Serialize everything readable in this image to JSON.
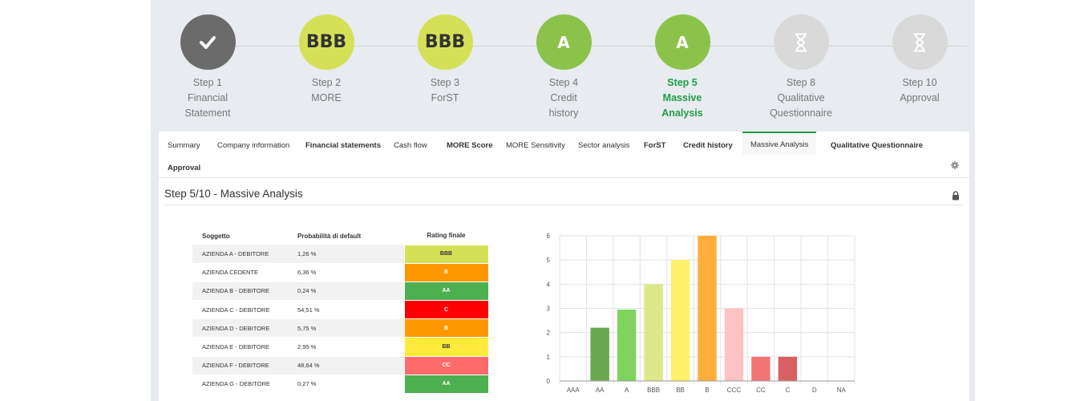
{
  "steps": [
    {
      "title": "Step 1",
      "lines": [
        "Financial",
        "Statement"
      ],
      "status": "done",
      "icon": "check-icon",
      "badge": ""
    },
    {
      "title": "Step 2",
      "lines": [
        "MORE"
      ],
      "status": "rated",
      "badge": "BBB",
      "color": "#d4e157"
    },
    {
      "title": "Step 3",
      "lines": [
        "ForST"
      ],
      "status": "rated",
      "badge": "BBB",
      "color": "#d4e157"
    },
    {
      "title": "Step 4",
      "lines": [
        "Credit",
        "history"
      ],
      "status": "rated",
      "badge": "A",
      "color": "#8bc34a"
    },
    {
      "title": "Step 5",
      "lines": [
        "Massive",
        "Analysis"
      ],
      "status": "active",
      "badge": "A",
      "color": "#8bc34a"
    },
    {
      "title": "Step 8",
      "lines": [
        "Qualitative",
        "Questionnaire"
      ],
      "status": "pending",
      "icon": "hourglass-icon",
      "badge": ""
    },
    {
      "title": "Step 10",
      "lines": [
        "Approval"
      ],
      "status": "pending",
      "icon": "hourglass-icon",
      "badge": ""
    }
  ],
  "tabs": [
    {
      "label": "Summary",
      "bold": false
    },
    {
      "label": "Company information",
      "bold": false
    },
    {
      "label": "Financial statements",
      "bold": true
    },
    {
      "label": "Cash flow",
      "bold": false
    },
    {
      "label": "MORE Score",
      "bold": true
    },
    {
      "label": "MORE Sensitivity",
      "bold": false
    },
    {
      "label": "Sector analysis",
      "bold": false
    },
    {
      "label": "ForST",
      "bold": true
    },
    {
      "label": "Credit history",
      "bold": true
    },
    {
      "label": "Massive Analysis",
      "bold": false,
      "active": true
    },
    {
      "label": "Qualitative Questionnaire",
      "bold": true
    },
    {
      "label": "Approval",
      "bold": true
    }
  ],
  "section": {
    "title": "Step 5/10 - Massive Analysis"
  },
  "table": {
    "headers": [
      "Soggetto",
      "Probabilità di default",
      "Rating finale"
    ],
    "rows": [
      {
        "subject": "AZIENDA A - DEBITORE",
        "pd": "1,26 %",
        "rating": "BBB",
        "color": "#d4e157",
        "text": "#333333"
      },
      {
        "subject": "AZIENDA CEDENTE",
        "pd": "6,36 %",
        "rating": "B",
        "color": "#ff9800",
        "text": "#ffffff"
      },
      {
        "subject": "AZIENDA B - DEBITORE",
        "pd": "0,24 %",
        "rating": "AA",
        "color": "#4caf50",
        "text": "#ffffff"
      },
      {
        "subject": "AZIENDA C - DEBITORE",
        "pd": "54,51 %",
        "rating": "C",
        "color": "#ff0000",
        "text": "#ffffff"
      },
      {
        "subject": "AZIENDA D - DEBITORE",
        "pd": "5,75 %",
        "rating": "B",
        "color": "#ff9800",
        "text": "#ffffff"
      },
      {
        "subject": "AZIENDA E - DEBITORE",
        "pd": "2,95 %",
        "rating": "BB",
        "color": "#ffeb3b",
        "text": "#333333"
      },
      {
        "subject": "AZIENDA F - DEBITORE",
        "pd": "48,64 %",
        "rating": "CC",
        "color": "#ff6b6b",
        "text": "#ffffff"
      },
      {
        "subject": "AZIENDA G - DEBITORE",
        "pd": "0,27 %",
        "rating": "AA",
        "color": "#4caf50",
        "text": "#ffffff"
      }
    ]
  },
  "chart_data": {
    "type": "bar",
    "categories": [
      "AAA",
      "AA",
      "A",
      "BBB",
      "BB",
      "B",
      "CCC",
      "CC",
      "C",
      "D",
      "NA"
    ],
    "values": [
      0,
      2.2,
      2.95,
      4,
      5,
      6,
      3,
      1,
      1,
      0,
      0
    ],
    "colors": [
      "#4caf50",
      "#6aa84f",
      "#7fd45d",
      "#dde88a",
      "#fff06a",
      "#ffad3b",
      "#ffc2c2",
      "#f27575",
      "#d96060",
      "#cccccc",
      "#cccccc"
    ],
    "ylim": [
      0,
      6
    ],
    "yticks": [
      0,
      1,
      2,
      3,
      4,
      5,
      6
    ],
    "grid": true,
    "xlabel": "",
    "ylabel": ""
  }
}
